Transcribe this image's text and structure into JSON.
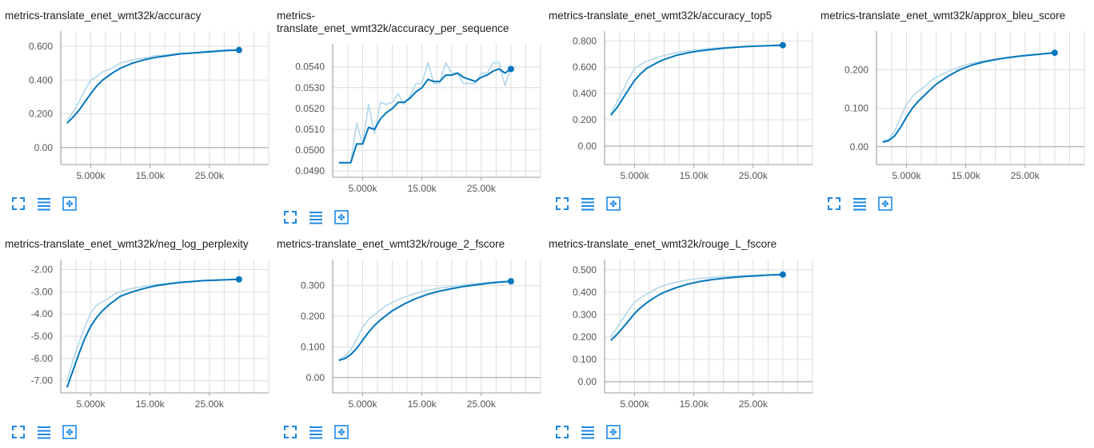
{
  "toolbar_icons": [
    "expand-icon",
    "data-table-icon",
    "fit-domain-icon"
  ],
  "colors": {
    "smoothed": "#0277bd",
    "raw": "#b3d7ec",
    "grid": "#dddddd",
    "axis": "#9e9e9e"
  },
  "chart_data": [
    {
      "type": "line",
      "title": "metrics-translate_enet_wmt32k/accuracy",
      "xticks": [
        "5.000k",
        "15.00k",
        "25.00k"
      ],
      "xtick_values": [
        5000,
        15000,
        25000
      ],
      "yticks": [
        "0.600",
        "0.400",
        "0.200",
        "0.00"
      ],
      "ytick_values": [
        0.6,
        0.4,
        0.2,
        0.0
      ],
      "xlim": [
        -50,
        35000
      ],
      "ylim": [
        -0.1,
        0.69
      ],
      "series": [
        {
          "role": "raw",
          "x": [
            1000,
            2000,
            3000,
            4000,
            5000,
            6000,
            7000,
            8000,
            9000,
            10000,
            12000,
            14000,
            16000,
            18000,
            20000,
            22000,
            24000,
            26000,
            28000,
            30000
          ],
          "y": [
            0.16,
            0.21,
            0.27,
            0.34,
            0.4,
            0.42,
            0.45,
            0.46,
            0.48,
            0.5,
            0.52,
            0.53,
            0.545,
            0.55,
            0.56,
            0.56,
            0.57,
            0.575,
            0.58,
            0.58
          ]
        },
        {
          "role": "smoothed",
          "x": [
            1000,
            2000,
            3000,
            4000,
            5000,
            6000,
            7000,
            8000,
            9000,
            10000,
            12000,
            14000,
            16000,
            18000,
            20000,
            22000,
            24000,
            26000,
            28000,
            30000
          ],
          "y": [
            0.145,
            0.18,
            0.22,
            0.27,
            0.32,
            0.365,
            0.4,
            0.425,
            0.45,
            0.47,
            0.5,
            0.52,
            0.535,
            0.545,
            0.555,
            0.56,
            0.565,
            0.57,
            0.575,
            0.578
          ]
        }
      ]
    },
    {
      "type": "line",
      "title": "metrics-translate_enet_wmt32k/accuracy_per_sequence",
      "xticks": [
        "5.000k",
        "15.00k",
        "25.00k"
      ],
      "xtick_values": [
        5000,
        15000,
        25000
      ],
      "yticks": [
        "0.0540",
        "0.0530",
        "0.0520",
        "0.0510",
        "0.0500",
        "0.0490"
      ],
      "ytick_values": [
        0.054,
        0.053,
        0.052,
        0.051,
        0.05,
        0.049
      ],
      "xlim": [
        -50,
        35000
      ],
      "ylim": [
        0.0487,
        0.0551
      ],
      "series": [
        {
          "role": "raw",
          "x": [
            1000,
            2000,
            3000,
            4000,
            5000,
            6000,
            7000,
            8000,
            9000,
            10000,
            11000,
            12000,
            13000,
            14000,
            15000,
            16000,
            17000,
            18000,
            19000,
            20000,
            21000,
            22000,
            23000,
            24000,
            25000,
            26000,
            27000,
            28000,
            29000,
            30000
          ],
          "y": [
            0.0494,
            0.0494,
            0.0494,
            0.0513,
            0.0503,
            0.0522,
            0.0508,
            0.0523,
            0.0522,
            0.0523,
            0.0527,
            0.0522,
            0.0526,
            0.0532,
            0.0532,
            0.0542,
            0.0532,
            0.0532,
            0.0542,
            0.0537,
            0.0537,
            0.0532,
            0.0532,
            0.0532,
            0.0537,
            0.0537,
            0.0542,
            0.0542,
            0.0531,
            0.054
          ]
        },
        {
          "role": "smoothed",
          "x": [
            1000,
            2000,
            3000,
            4000,
            5000,
            6000,
            7000,
            8000,
            9000,
            10000,
            11000,
            12000,
            13000,
            14000,
            15000,
            16000,
            17000,
            18000,
            19000,
            20000,
            21000,
            22000,
            23000,
            24000,
            25000,
            26000,
            27000,
            28000,
            29000,
            30000
          ],
          "y": [
            0.0494,
            0.0494,
            0.0494,
            0.0503,
            0.0503,
            0.0511,
            0.051,
            0.0515,
            0.0518,
            0.052,
            0.0523,
            0.0523,
            0.0525,
            0.0528,
            0.053,
            0.0534,
            0.0533,
            0.0533,
            0.0536,
            0.0536,
            0.0537,
            0.0535,
            0.0534,
            0.0533,
            0.0535,
            0.0536,
            0.0538,
            0.0539,
            0.0537,
            0.0539
          ]
        }
      ]
    },
    {
      "type": "line",
      "title": "metrics-translate_enet_wmt32k/accuracy_top5",
      "xticks": [
        "5.000k",
        "15.00k",
        "25.00k"
      ],
      "xtick_values": [
        5000,
        15000,
        25000
      ],
      "yticks": [
        "0.800",
        "0.600",
        "0.400",
        "0.200",
        "0.00"
      ],
      "ytick_values": [
        0.8,
        0.6,
        0.4,
        0.2,
        0.0
      ],
      "xlim": [
        -50,
        35000
      ],
      "ylim": [
        -0.14,
        0.875
      ],
      "series": [
        {
          "role": "raw",
          "x": [
            1000,
            2000,
            3000,
            4000,
            5000,
            6000,
            7000,
            8000,
            9000,
            10000,
            12000,
            14000,
            16000,
            18000,
            20000,
            22000,
            24000,
            26000,
            28000,
            30000
          ],
          "y": [
            0.25,
            0.33,
            0.42,
            0.51,
            0.59,
            0.62,
            0.645,
            0.66,
            0.675,
            0.69,
            0.71,
            0.725,
            0.735,
            0.745,
            0.75,
            0.755,
            0.76,
            0.762,
            0.765,
            0.768
          ]
        },
        {
          "role": "smoothed",
          "x": [
            1000,
            2000,
            3000,
            4000,
            5000,
            6000,
            7000,
            8000,
            9000,
            10000,
            12000,
            14000,
            16000,
            18000,
            20000,
            22000,
            24000,
            26000,
            28000,
            30000
          ],
          "y": [
            0.235,
            0.29,
            0.36,
            0.43,
            0.5,
            0.55,
            0.59,
            0.615,
            0.64,
            0.66,
            0.69,
            0.71,
            0.725,
            0.735,
            0.745,
            0.752,
            0.758,
            0.762,
            0.765,
            0.768
          ]
        }
      ]
    },
    {
      "type": "line",
      "title": "metrics-translate_enet_wmt32k/approx_bleu_score",
      "xticks": [
        "5.000k",
        "15.00k",
        "25.00k"
      ],
      "xtick_values": [
        5000,
        15000,
        25000
      ],
      "yticks": [
        "0.200",
        "0.100",
        "0.00"
      ],
      "ytick_values": [
        0.2,
        0.1,
        0.0
      ],
      "xlim": [
        -50,
        35000
      ],
      "ylim": [
        -0.046,
        0.3
      ],
      "series": [
        {
          "role": "raw",
          "x": [
            1000,
            2000,
            3000,
            4000,
            5000,
            6000,
            7000,
            8000,
            9000,
            10000,
            12000,
            14000,
            16000,
            18000,
            20000,
            22000,
            24000,
            26000,
            28000,
            30000
          ],
          "y": [
            0.015,
            0.02,
            0.04,
            0.075,
            0.11,
            0.13,
            0.145,
            0.155,
            0.17,
            0.18,
            0.195,
            0.207,
            0.217,
            0.223,
            0.228,
            0.232,
            0.236,
            0.239,
            0.242,
            0.244
          ]
        },
        {
          "role": "smoothed",
          "x": [
            1000,
            2000,
            3000,
            4000,
            5000,
            6000,
            7000,
            8000,
            9000,
            10000,
            12000,
            14000,
            16000,
            18000,
            20000,
            22000,
            24000,
            26000,
            28000,
            30000
          ],
          "y": [
            0.012,
            0.016,
            0.028,
            0.05,
            0.077,
            0.1,
            0.118,
            0.133,
            0.148,
            0.162,
            0.183,
            0.2,
            0.212,
            0.22,
            0.226,
            0.231,
            0.235,
            0.238,
            0.241,
            0.244
          ]
        }
      ]
    },
    {
      "type": "line",
      "title": "metrics-translate_enet_wmt32k/neg_log_perplexity",
      "xticks": [
        "5.000k",
        "15.00k",
        "25.00k"
      ],
      "xtick_values": [
        5000,
        15000,
        25000
      ],
      "yticks": [
        "-2.00",
        "-3.00",
        "-4.00",
        "-5.00",
        "-6.00",
        "-7.00"
      ],
      "ytick_values": [
        -2,
        -3,
        -4,
        -5,
        -6,
        -7
      ],
      "xlim": [
        -50,
        35000
      ],
      "ylim": [
        -7.55,
        -1.55
      ],
      "series": [
        {
          "role": "raw",
          "x": [
            1000,
            2000,
            3000,
            4000,
            5000,
            6000,
            7000,
            8000,
            9000,
            10000,
            12000,
            14000,
            16000,
            18000,
            20000,
            22000,
            24000,
            26000,
            28000,
            30000
          ],
          "y": [
            -7.0,
            -6.1,
            -5.3,
            -4.6,
            -3.95,
            -3.6,
            -3.45,
            -3.3,
            -3.1,
            -2.98,
            -2.85,
            -2.75,
            -2.68,
            -2.62,
            -2.56,
            -2.53,
            -2.5,
            -2.47,
            -2.46,
            -2.45
          ]
        },
        {
          "role": "smoothed",
          "x": [
            1000,
            2000,
            3000,
            4000,
            5000,
            6000,
            7000,
            8000,
            9000,
            10000,
            12000,
            14000,
            16000,
            18000,
            20000,
            22000,
            24000,
            26000,
            28000,
            30000
          ],
          "y": [
            -7.3,
            -6.55,
            -5.8,
            -5.1,
            -4.55,
            -4.15,
            -3.85,
            -3.6,
            -3.4,
            -3.2,
            -3.0,
            -2.85,
            -2.73,
            -2.65,
            -2.58,
            -2.54,
            -2.5,
            -2.48,
            -2.46,
            -2.44
          ]
        }
      ]
    },
    {
      "type": "line",
      "title": "metrics-translate_enet_wmt32k/rouge_2_fscore",
      "xticks": [
        "5.000k",
        "15.00k",
        "25.00k"
      ],
      "xtick_values": [
        5000,
        15000,
        25000
      ],
      "yticks": [
        "0.300",
        "0.200",
        "0.100",
        "0.00"
      ],
      "ytick_values": [
        0.3,
        0.2,
        0.1,
        0.0
      ],
      "xlim": [
        -50,
        35000
      ],
      "ylim": [
        -0.05,
        0.385
      ],
      "series": [
        {
          "role": "raw",
          "x": [
            1000,
            2000,
            3000,
            4000,
            5000,
            6000,
            7000,
            8000,
            9000,
            10000,
            12000,
            14000,
            16000,
            18000,
            20000,
            22000,
            24000,
            26000,
            28000,
            30000
          ],
          "y": [
            0.06,
            0.07,
            0.09,
            0.125,
            0.165,
            0.19,
            0.205,
            0.22,
            0.235,
            0.245,
            0.262,
            0.275,
            0.285,
            0.292,
            0.297,
            0.302,
            0.306,
            0.31,
            0.313,
            0.315
          ]
        },
        {
          "role": "smoothed",
          "x": [
            1000,
            2000,
            3000,
            4000,
            5000,
            6000,
            7000,
            8000,
            9000,
            10000,
            12000,
            14000,
            16000,
            18000,
            20000,
            22000,
            24000,
            26000,
            28000,
            30000
          ],
          "y": [
            0.056,
            0.062,
            0.075,
            0.095,
            0.122,
            0.148,
            0.17,
            0.188,
            0.203,
            0.218,
            0.24,
            0.258,
            0.272,
            0.282,
            0.29,
            0.297,
            0.302,
            0.307,
            0.311,
            0.314
          ]
        }
      ]
    },
    {
      "type": "line",
      "title": "metrics-translate_enet_wmt32k/rouge_L_fscore",
      "xticks": [
        "5.000k",
        "15.00k",
        "25.00k"
      ],
      "xtick_values": [
        5000,
        15000,
        25000
      ],
      "yticks": [
        "0.500",
        "0.400",
        "0.300",
        "0.200",
        "0.100",
        "0.00"
      ],
      "ytick_values": [
        0.5,
        0.4,
        0.3,
        0.2,
        0.1,
        0.0
      ],
      "xlim": [
        -50,
        35000
      ],
      "ylim": [
        -0.05,
        0.546
      ],
      "series": [
        {
          "role": "raw",
          "x": [
            1000,
            2000,
            3000,
            4000,
            5000,
            6000,
            7000,
            8000,
            9000,
            10000,
            12000,
            14000,
            16000,
            18000,
            20000,
            22000,
            24000,
            26000,
            28000,
            30000
          ],
          "y": [
            0.2,
            0.24,
            0.28,
            0.32,
            0.355,
            0.375,
            0.39,
            0.405,
            0.42,
            0.43,
            0.445,
            0.455,
            0.462,
            0.466,
            0.47,
            0.472,
            0.474,
            0.476,
            0.478,
            0.48
          ]
        },
        {
          "role": "smoothed",
          "x": [
            1000,
            2000,
            3000,
            4000,
            5000,
            6000,
            7000,
            8000,
            9000,
            10000,
            12000,
            14000,
            16000,
            18000,
            20000,
            22000,
            24000,
            26000,
            28000,
            30000
          ],
          "y": [
            0.185,
            0.21,
            0.24,
            0.272,
            0.305,
            0.33,
            0.352,
            0.37,
            0.386,
            0.4,
            0.42,
            0.436,
            0.448,
            0.456,
            0.462,
            0.467,
            0.471,
            0.474,
            0.477,
            0.479
          ]
        }
      ]
    }
  ]
}
